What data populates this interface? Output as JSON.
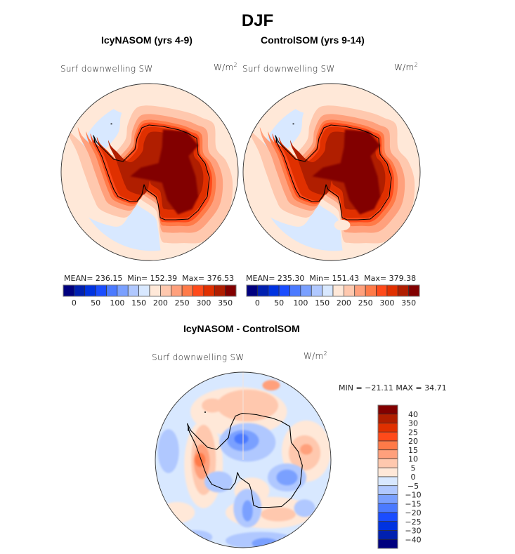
{
  "header": {
    "title": "DJF"
  },
  "panels": [
    {
      "title": "IcyNASOM (yrs 4-9)",
      "variable": "Surf downwelling SW",
      "units_base": "W/m",
      "units_exp": "2",
      "stats": {
        "mean_label": "MEAN=",
        "mean": "236.15",
        "min_label": "Min=",
        "min": "152.39",
        "max_label": "Max=",
        "max": "376.53"
      }
    },
    {
      "title": "ControlSOM (yrs 9-14)",
      "variable": "Surf downwelling SW",
      "units_base": "W/m",
      "units_exp": "2",
      "stats": {
        "mean_label": "MEAN=",
        "mean": "235.30",
        "min_label": "Min=",
        "min": "151.43",
        "max_label": "Max=",
        "max": "379.38"
      }
    },
    {
      "title": "IcyNASOM - ControlSOM",
      "variable": "Surf downwelling SW",
      "units_base": "W/m",
      "units_exp": "2",
      "stats_text": "MIN = −21.11 MAX =  34.71"
    }
  ],
  "chart_data": [
    {
      "type": "heatmap",
      "title": "IcyNASOM (yrs 4-9)",
      "projection": "south-polar-stereographic",
      "variable": "Surf downwelling SW",
      "units": "W/m^2",
      "season": "DJF",
      "stats": {
        "mean": 236.15,
        "min": 152.39,
        "max": 376.53
      },
      "colorbar": {
        "orientation": "horizontal",
        "tick_labels": [
          "0",
          "50",
          "100",
          "150",
          "200",
          "250",
          "300",
          "350"
        ],
        "colors": [
          "#00007f",
          "#0020b0",
          "#0033e0",
          "#1a4dff",
          "#4b7aff",
          "#7aa0ff",
          "#b0c8ff",
          "#d8e8ff",
          "#ffe8d8",
          "#ffc8ae",
          "#ffa07c",
          "#ff7a48",
          "#ff4a1a",
          "#e03000",
          "#b01e00",
          "#820000"
        ]
      },
      "regions": [
        {
          "name": "outer-ring",
          "level_index": 8
        },
        {
          "name": "ocean-band",
          "level_index": 7
        },
        {
          "name": "near-coast-1",
          "level_index": 9
        },
        {
          "name": "near-coast-2",
          "level_index": 10
        },
        {
          "name": "coast-margin",
          "level_index": 12
        },
        {
          "name": "ice-edge",
          "level_index": 13
        },
        {
          "name": "ice-sheet",
          "level_index": 14
        },
        {
          "name": "plateau",
          "level_index": 15
        }
      ]
    },
    {
      "type": "heatmap",
      "title": "ControlSOM (yrs 9-14)",
      "projection": "south-polar-stereographic",
      "variable": "Surf downwelling SW",
      "units": "W/m^2",
      "season": "DJF",
      "stats": {
        "mean": 235.3,
        "min": 151.43,
        "max": 379.38
      },
      "colorbar": {
        "orientation": "horizontal",
        "tick_labels": [
          "0",
          "50",
          "100",
          "150",
          "200",
          "250",
          "300",
          "350"
        ],
        "colors": [
          "#00007f",
          "#0020b0",
          "#0033e0",
          "#1a4dff",
          "#4b7aff",
          "#7aa0ff",
          "#b0c8ff",
          "#d8e8ff",
          "#ffe8d8",
          "#ffc8ae",
          "#ffa07c",
          "#ff7a48",
          "#ff4a1a",
          "#e03000",
          "#b01e00",
          "#820000"
        ]
      },
      "regions": [
        {
          "name": "outer-ring",
          "level_index": 8
        },
        {
          "name": "ocean-band",
          "level_index": 7
        },
        {
          "name": "near-coast-1",
          "level_index": 9
        },
        {
          "name": "near-coast-2",
          "level_index": 10
        },
        {
          "name": "coast-margin",
          "level_index": 12
        },
        {
          "name": "ice-edge",
          "level_index": 13
        },
        {
          "name": "ice-sheet",
          "level_index": 14
        },
        {
          "name": "plateau",
          "level_index": 15
        }
      ]
    },
    {
      "type": "heatmap",
      "title": "IcyNASOM - ControlSOM",
      "projection": "south-polar-stereographic",
      "variable": "Surf downwelling SW",
      "units": "W/m^2",
      "season": "DJF",
      "stats": {
        "min": -21.11,
        "max": 34.71
      },
      "colorbar": {
        "orientation": "vertical",
        "tick_labels": [
          "40",
          "30",
          "25",
          "20",
          "15",
          "10",
          "5",
          "0",
          "−5",
          "−10",
          "−15",
          "−20",
          "−25",
          "−30",
          "−40"
        ],
        "colors_top_to_bottom": [
          "#820000",
          "#b01e00",
          "#e03000",
          "#ff4a1a",
          "#ff7a48",
          "#ffa07c",
          "#ffc8ae",
          "#ffe8d8",
          "#d8e8ff",
          "#b0c8ff",
          "#7aa0ff",
          "#4b7aff",
          "#1a4dff",
          "#0033e0",
          "#0020b0",
          "#00007f"
        ]
      },
      "anomalies": [
        {
          "name": "west-peninsula-positive",
          "value_range": [
            15,
            25
          ]
        },
        {
          "name": "east-antarctica-positive",
          "value_range": [
            5,
            15
          ]
        },
        {
          "name": "north-pacific-sector-positive",
          "value_range": [
            5,
            10
          ]
        },
        {
          "name": "west-antarctica-negative",
          "value_range": [
            -15,
            -10
          ]
        },
        {
          "name": "east-interior-negative",
          "value_range": [
            -10,
            -5
          ]
        },
        {
          "name": "ross-ice-shelf-negative",
          "value_range": [
            -15,
            -5
          ]
        }
      ]
    }
  ]
}
